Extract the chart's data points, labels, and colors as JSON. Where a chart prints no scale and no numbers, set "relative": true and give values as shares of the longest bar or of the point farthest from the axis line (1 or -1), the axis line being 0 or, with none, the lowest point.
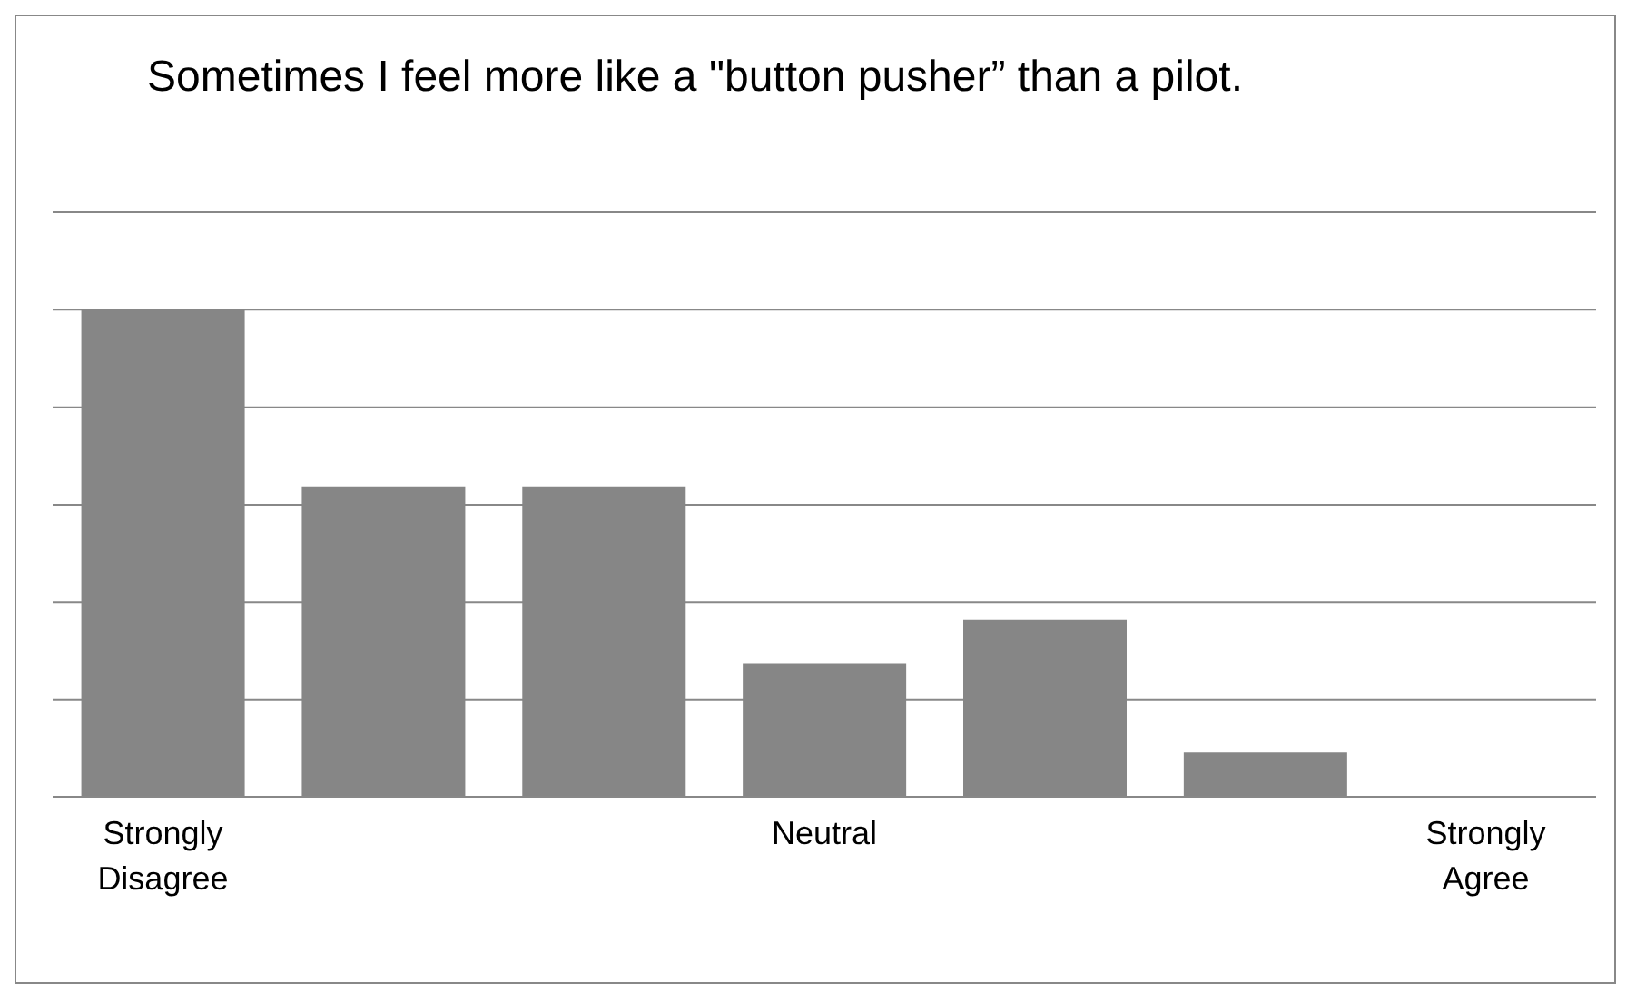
{
  "chart_data": {
    "type": "bar",
    "title": "Sometimes I feel more like a \"button pusher” than a pilot.",
    "categories": [
      "Strongly Disagree",
      null,
      null,
      "Neutral",
      null,
      null,
      "Strongly Agree"
    ],
    "values": [
      1,
      0.636,
      0.636,
      0.273,
      0.364,
      0.091,
      0
    ],
    "color": "#868686",
    "relative": true,
    "grid": "y"
  }
}
